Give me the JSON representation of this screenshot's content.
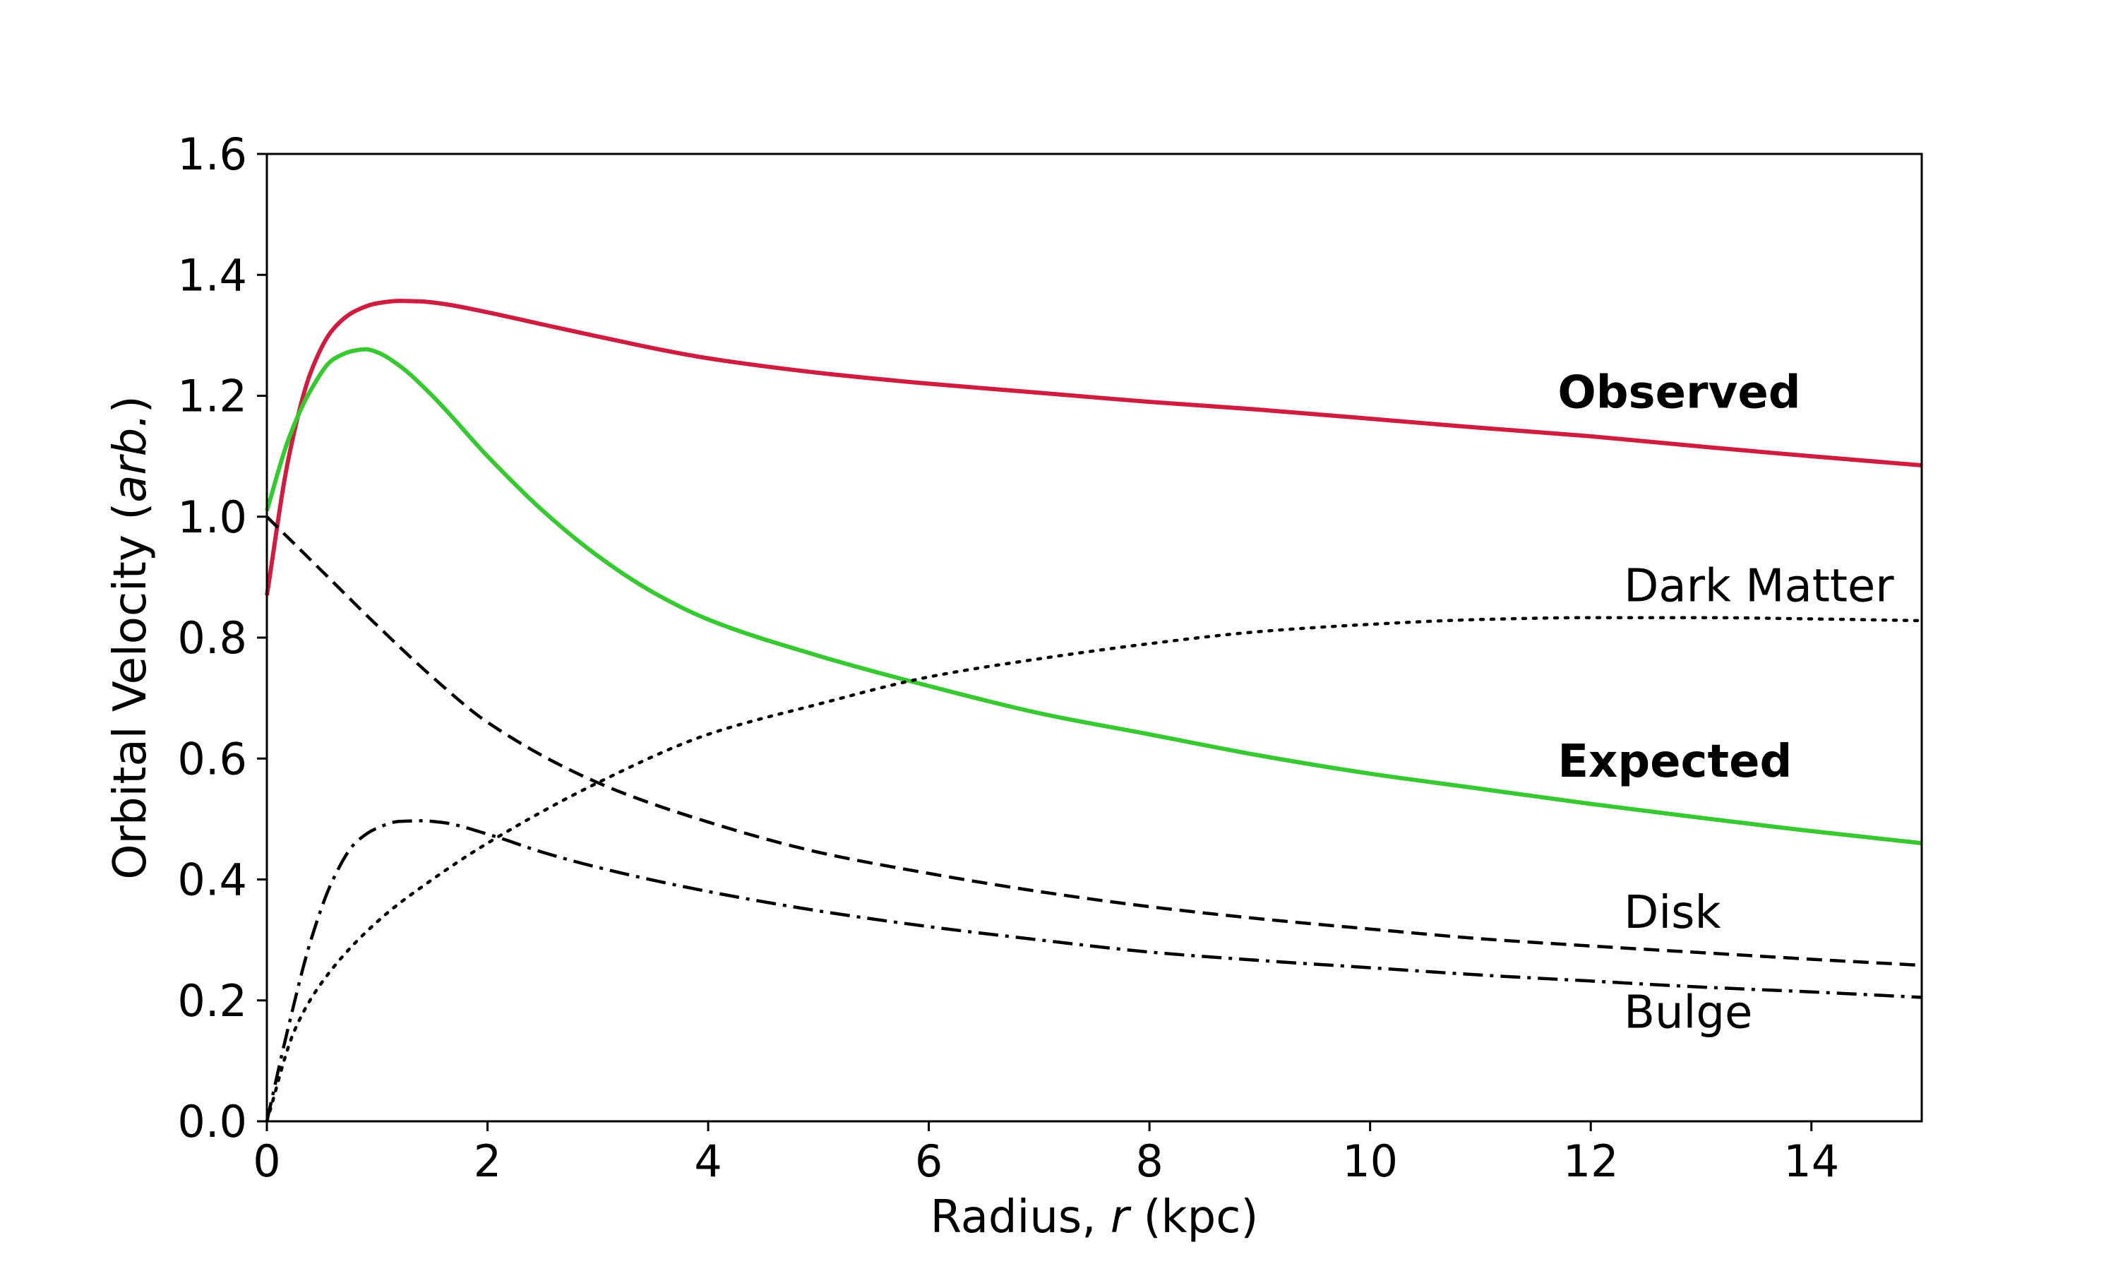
{
  "chart_data": {
    "type": "line",
    "xlabel": {
      "prefix": "Radius, ",
      "italic": "r",
      "suffix": " (kpc)"
    },
    "ylabel": {
      "prefix": "Orbital Velocity (",
      "italic": "arb.",
      "suffix": ")"
    },
    "xlim": [
      0,
      15
    ],
    "ylim": [
      0,
      1.6
    ],
    "xticks": [
      "0",
      "2",
      "4",
      "6",
      "8",
      "10",
      "12",
      "14"
    ],
    "xtick_values": [
      0,
      2,
      4,
      6,
      8,
      10,
      12,
      14
    ],
    "yticks": [
      "0.0",
      "0.2",
      "0.4",
      "0.6",
      "0.8",
      "1.0",
      "1.2",
      "1.4",
      "1.6"
    ],
    "ytick_values": [
      0,
      0.2,
      0.4,
      0.6,
      0.8,
      1.0,
      1.2,
      1.4,
      1.6
    ],
    "grid": false,
    "legend": "none",
    "series": [
      {
        "name": "Observed",
        "color": "#d01c3f",
        "style": "solid",
        "annotation_bold": true,
        "label_at": [
          11.7,
          1.18
        ],
        "x": [
          0,
          0.2,
          0.4,
          0.6,
          0.8,
          1.0,
          1.2,
          1.4,
          1.6,
          2.0,
          2.5,
          3.0,
          4.0,
          5.0,
          6.0,
          7.0,
          8.0,
          9.0,
          10.0,
          11.0,
          12.0,
          13.0,
          14.0,
          15.0
        ],
        "y": [
          0.87,
          1.1,
          1.24,
          1.31,
          1.34,
          1.353,
          1.357,
          1.356,
          1.352,
          1.338,
          1.318,
          1.298,
          1.262,
          1.238,
          1.22,
          1.205,
          1.19,
          1.177,
          1.162,
          1.147,
          1.133,
          1.116,
          1.1,
          1.085
        ]
      },
      {
        "name": "Expected",
        "color": "#36c930",
        "style": "solid",
        "annotation_bold": true,
        "label_at": [
          11.7,
          0.57
        ],
        "x": [
          0,
          0.2,
          0.4,
          0.6,
          0.8,
          0.9,
          1.0,
          1.2,
          1.5,
          2.0,
          2.5,
          3.0,
          3.5,
          4.0,
          5.0,
          6.0,
          7.0,
          8.0,
          9.0,
          10.0,
          11.0,
          12.0,
          13.0,
          14.0,
          15.0
        ],
        "y": [
          1.01,
          1.13,
          1.21,
          1.26,
          1.275,
          1.277,
          1.272,
          1.25,
          1.2,
          1.1,
          1.01,
          0.935,
          0.875,
          0.83,
          0.77,
          0.72,
          0.675,
          0.64,
          0.605,
          0.575,
          0.55,
          0.525,
          0.502,
          0.48,
          0.46
        ]
      },
      {
        "name": "Dark Matter",
        "color": "#000000",
        "style": "dotted",
        "annotation_bold": false,
        "label_at": [
          12.3,
          0.86
        ],
        "x": [
          0,
          0.25,
          0.5,
          1.0,
          1.5,
          2.0,
          3.0,
          4.0,
          5.0,
          6.0,
          7.0,
          8.0,
          9.0,
          10.0,
          11.0,
          12.0,
          13.0,
          14.0,
          15.0
        ],
        "y": [
          0.0,
          0.15,
          0.23,
          0.33,
          0.4,
          0.46,
          0.56,
          0.64,
          0.69,
          0.735,
          0.765,
          0.79,
          0.81,
          0.822,
          0.83,
          0.833,
          0.833,
          0.831,
          0.828
        ]
      },
      {
        "name": "Disk",
        "color": "#000000",
        "style": "dashed",
        "annotation_bold": false,
        "label_at": [
          12.3,
          0.32
        ],
        "x": [
          0,
          0.5,
          1.0,
          1.5,
          2.0,
          3.0,
          4.0,
          5.0,
          6.0,
          7.0,
          8.0,
          9.0,
          10.0,
          11.0,
          12.0,
          13.0,
          14.0,
          15.0
        ],
        "y": [
          1.0,
          0.91,
          0.82,
          0.735,
          0.66,
          0.56,
          0.495,
          0.445,
          0.41,
          0.38,
          0.355,
          0.335,
          0.318,
          0.302,
          0.29,
          0.279,
          0.268,
          0.258
        ]
      },
      {
        "name": "Bulge",
        "color": "#000000",
        "style": "dashdot",
        "annotation_bold": false,
        "label_at": [
          12.3,
          0.155
        ],
        "x": [
          0,
          0.2,
          0.4,
          0.6,
          0.8,
          1.0,
          1.2,
          1.4,
          1.6,
          2.0,
          2.5,
          3.0,
          4.0,
          5.0,
          6.0,
          7.0,
          8.0,
          9.0,
          10.0,
          11.0,
          12.0,
          13.0,
          14.0,
          15.0
        ],
        "y": [
          0.0,
          0.16,
          0.3,
          0.4,
          0.46,
          0.485,
          0.496,
          0.497,
          0.494,
          0.475,
          0.445,
          0.42,
          0.38,
          0.348,
          0.322,
          0.3,
          0.28,
          0.266,
          0.254,
          0.242,
          0.232,
          0.222,
          0.214,
          0.205
        ]
      }
    ]
  }
}
